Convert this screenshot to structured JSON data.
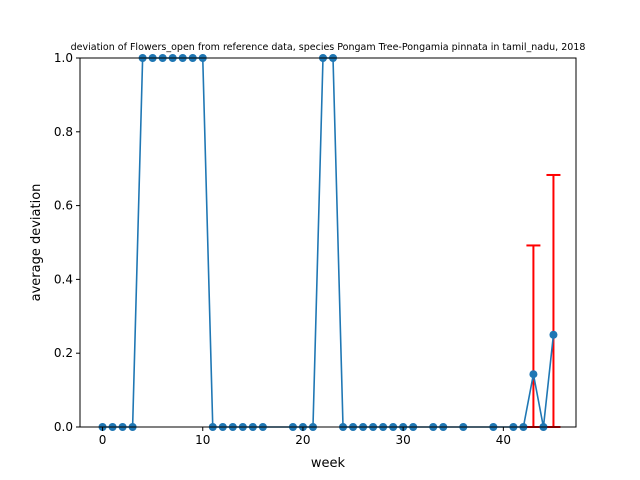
{
  "chart_data": {
    "type": "line",
    "title": "deviation of Flowers_open from reference data, species Pongam Tree-Pongamia pinnata in tamil_nadu, 2018",
    "xlabel": "week",
    "ylabel": "average deviation",
    "xlim": [
      -2.25,
      47.25
    ],
    "ylim": [
      0,
      1.0
    ],
    "x_ticks": [
      0,
      10,
      20,
      30,
      40
    ],
    "x_tick_labels": [
      "0",
      "10",
      "20",
      "30",
      "40"
    ],
    "y_ticks": [
      0.0,
      0.2,
      0.4,
      0.6,
      0.8,
      1.0
    ],
    "y_tick_labels": [
      "0.0",
      "0.2",
      "0.4",
      "0.6",
      "0.8",
      "1.0"
    ],
    "grid": false,
    "series": [
      {
        "color": "#1f77b4",
        "x": [
          0,
          1,
          2,
          3,
          4,
          5,
          6,
          7,
          8,
          9,
          10,
          11,
          12,
          13,
          14,
          15,
          16,
          19,
          20,
          21,
          22,
          23,
          24,
          25,
          26,
          27,
          28,
          29,
          30,
          31,
          33,
          34,
          36,
          39,
          41,
          42,
          43,
          44,
          45
        ],
        "y": [
          0,
          0,
          0,
          0,
          1,
          1,
          1,
          1,
          1,
          1,
          1,
          0,
          0,
          0,
          0,
          0,
          0,
          0,
          0,
          0,
          1,
          1,
          0,
          0,
          0,
          0,
          0,
          0,
          0,
          0,
          0,
          0,
          0,
          0,
          0,
          0,
          0.143,
          0,
          0.25
        ]
      }
    ],
    "error_bars": {
      "color": "#ff0000",
      "points": [
        {
          "x": 43,
          "y": 0.143,
          "lower": 0,
          "upper": 0.492
        },
        {
          "x": 45,
          "y": 0.25,
          "lower": 0,
          "upper": 0.683
        }
      ]
    },
    "colors": {
      "line": "#1f77b4",
      "error": "#ff0000"
    }
  }
}
